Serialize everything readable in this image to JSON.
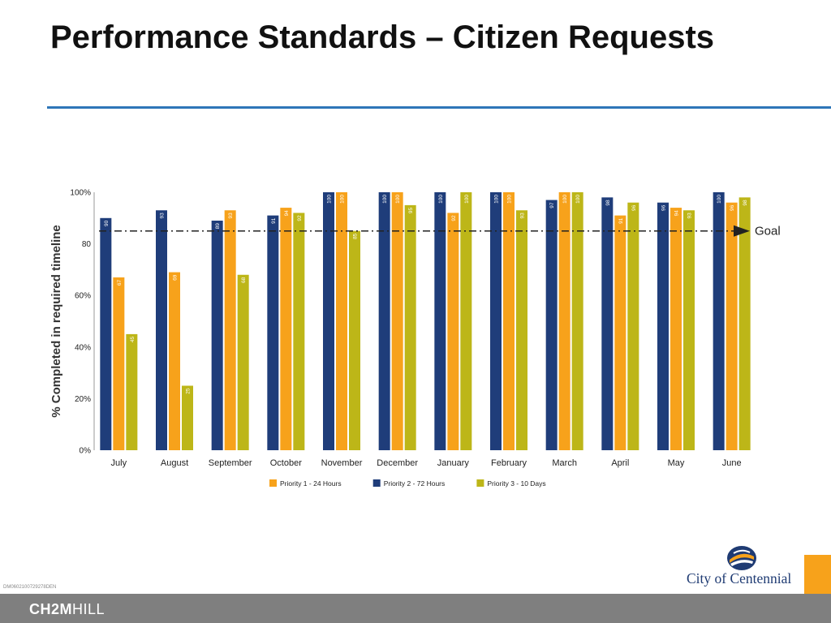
{
  "slide": {
    "title": "Performance Standards – Citizen Requests",
    "doc_id": "DM0602100729278DEN",
    "company_logo": {
      "bold": "CH2M",
      "light": "HILL"
    },
    "city_logo_text": "City of Centennial"
  },
  "chart_data": {
    "type": "bar",
    "title": "",
    "ylabel": "% Completed in required timeline",
    "xlabel": "",
    "ylim": [
      0,
      100
    ],
    "y_ticks": [
      "0%",
      "20%",
      "40%",
      "60%",
      "80",
      "100%"
    ],
    "categories": [
      "July",
      "August",
      "September",
      "October",
      "November",
      "December",
      "January",
      "February",
      "March",
      "April",
      "May",
      "June"
    ],
    "series": [
      {
        "name": "Priority 2 - 72 Hours",
        "color": "#1f3d7a",
        "values": [
          90,
          93,
          89,
          91,
          100,
          100,
          100,
          100,
          97,
          98,
          96,
          100
        ]
      },
      {
        "name": "Priority 1 - 24 Hours",
        "color": "#f7a21b",
        "values": [
          67,
          69,
          93,
          94,
          100,
          100,
          92,
          100,
          100,
          91,
          94,
          96
        ]
      },
      {
        "name": "Priority 3 - 10 Days",
        "color": "#bdb618",
        "values": [
          45,
          25,
          68,
          92,
          85,
          95,
          100,
          93,
          100,
          96,
          93,
          98
        ]
      }
    ],
    "data_labels": [
      [
        "90",
        "67",
        "45"
      ],
      [
        "93",
        "69",
        "25"
      ],
      [
        "89",
        "93",
        "68"
      ],
      [
        "91",
        "94",
        "92"
      ],
      [
        "100",
        "100",
        "85"
      ],
      [
        "100",
        "100",
        "95"
      ],
      [
        "100",
        "92",
        "100"
      ],
      [
        "100",
        "100",
        "93"
      ],
      [
        "97",
        "100",
        "100"
      ],
      [
        "98",
        "91",
        "96"
      ],
      [
        "96",
        "94",
        "93"
      ],
      [
        "100",
        "96",
        "98"
      ]
    ],
    "goal": {
      "value": 85,
      "label": "Goal"
    },
    "legend": {
      "placement": "bottom",
      "order": [
        "Priority 1 - 24 Hours",
        "Priority 2 - 72 Hours",
        "Priority 3 - 10 Days"
      ]
    },
    "grid": false
  }
}
